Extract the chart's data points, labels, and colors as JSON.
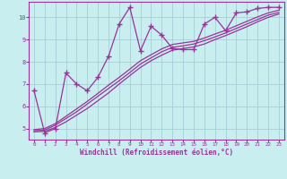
{
  "background_color": "#c8eef0",
  "grid_color": "#a0c8d0",
  "line_color": "#993399",
  "marker_color": "#993399",
  "xlabel": "Windchill (Refroidissement éolien,°C)",
  "xlim": [
    -0.5,
    23.5
  ],
  "ylim": [
    4.5,
    10.7
  ],
  "yticks": [
    5,
    6,
    7,
    8,
    9,
    10
  ],
  "xticks": [
    0,
    1,
    2,
    3,
    4,
    5,
    6,
    7,
    8,
    9,
    10,
    11,
    12,
    13,
    14,
    15,
    16,
    17,
    18,
    19,
    20,
    21,
    22,
    23
  ],
  "line1_x": [
    0,
    1,
    2,
    3,
    4,
    5,
    6,
    7,
    8,
    9,
    10,
    11,
    12,
    13,
    14,
    15,
    16,
    17,
    18,
    19,
    20,
    21,
    22,
    23
  ],
  "line1_y": [
    6.7,
    4.8,
    5.0,
    7.5,
    7.0,
    6.7,
    7.3,
    8.25,
    9.7,
    10.45,
    8.5,
    9.6,
    9.2,
    8.6,
    8.55,
    8.55,
    9.7,
    10.0,
    9.4,
    10.2,
    10.25,
    10.4,
    10.45,
    10.45
  ],
  "smooth_x": [
    0,
    1,
    2,
    3,
    4,
    5,
    6,
    7,
    8,
    9,
    10,
    11,
    12,
    13,
    14,
    15,
    16,
    17,
    18,
    19,
    20,
    21,
    22,
    23
  ],
  "smooth1_y": [
    4.85,
    4.87,
    5.05,
    5.3,
    5.6,
    5.9,
    6.25,
    6.6,
    7.0,
    7.38,
    7.75,
    8.05,
    8.3,
    8.52,
    8.6,
    8.67,
    8.8,
    9.0,
    9.18,
    9.38,
    9.58,
    9.8,
    10.0,
    10.15
  ],
  "smooth2_y": [
    4.9,
    4.93,
    5.15,
    5.45,
    5.75,
    6.1,
    6.45,
    6.8,
    7.15,
    7.52,
    7.9,
    8.18,
    8.45,
    8.65,
    8.72,
    8.8,
    8.95,
    9.12,
    9.3,
    9.5,
    9.7,
    9.9,
    10.1,
    10.22
  ],
  "smooth3_y": [
    4.95,
    5.0,
    5.22,
    5.55,
    5.88,
    6.22,
    6.58,
    6.95,
    7.3,
    7.67,
    8.05,
    8.32,
    8.58,
    8.78,
    8.85,
    8.92,
    9.07,
    9.25,
    9.42,
    9.62,
    9.82,
    10.02,
    10.2,
    10.32
  ]
}
